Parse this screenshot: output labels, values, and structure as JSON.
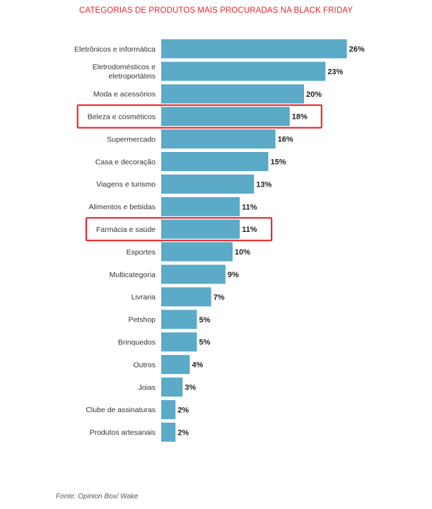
{
  "chart_data": {
    "type": "bar",
    "orientation": "horizontal",
    "title": "CATEGORIAS DE PRODUTOS MAIS PROCURADAS NA BLACK FRIDAY",
    "categories": [
      [
        "Eletrônicos e informática"
      ],
      [
        "Eletrodomésticos e",
        "eletroportáteis"
      ],
      [
        "Moda e acessórios"
      ],
      [
        "Beleza e cosméticos"
      ],
      [
        "Supermercado"
      ],
      [
        "Casa e decoração"
      ],
      [
        "Viagens e turismo"
      ],
      [
        "Alimentos e bebidas"
      ],
      [
        "Farmácia e saúde"
      ],
      [
        "Esportes"
      ],
      [
        "Multicategoria"
      ],
      [
        "Livraria"
      ],
      [
        "Petshop"
      ],
      [
        "Brinquedos"
      ],
      [
        "Outros"
      ],
      [
        "Joias"
      ],
      [
        "Clube de assinaturas"
      ],
      [
        "Produtos artesanais"
      ]
    ],
    "values": [
      26,
      23,
      20,
      18,
      16,
      15,
      13,
      11,
      11,
      10,
      9,
      7,
      5,
      5,
      4,
      3,
      2,
      2
    ],
    "value_labels": [
      "26%",
      "23%",
      "20%",
      "18%",
      "16%",
      "15%",
      "13%",
      "11%",
      "11%",
      "10%",
      "9%",
      "7%",
      "5%",
      "5%",
      "4%",
      "3%",
      "2%",
      "2%"
    ],
    "highlighted": [
      "Beleza e cosméticos",
      "Farmácia e saúde"
    ],
    "bar_color": "#5aaac8",
    "highlight_color": "#e8262b",
    "title_color": "#e8262b",
    "grid": false,
    "legend": "none"
  },
  "footer": {
    "source": "Fonte: Opinion Box/ Wake"
  }
}
